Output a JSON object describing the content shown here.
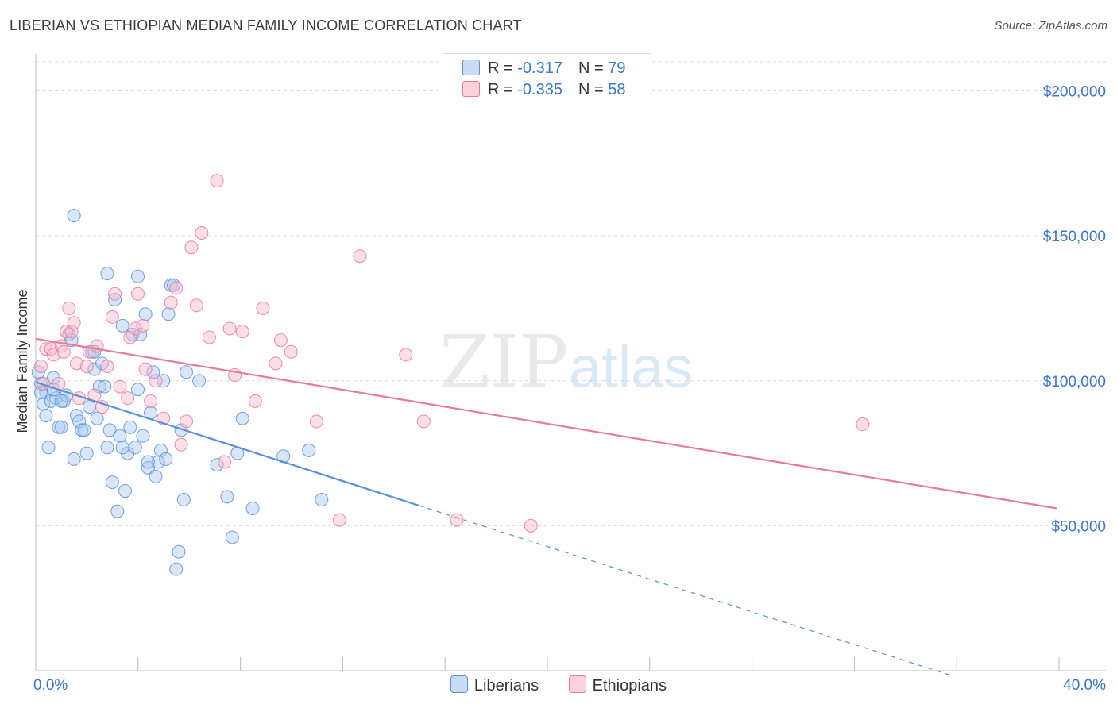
{
  "title": "LIBERIAN VS ETHIOPIAN MEDIAN FAMILY INCOME CORRELATION CHART",
  "source": "Source: ZipAtlas.com",
  "watermark": {
    "zip": "ZIP",
    "atlas": "atlas"
  },
  "legend": {
    "rows": [
      {
        "r_label": "R = ",
        "r_value": "-0.317",
        "n_label": "N = ",
        "n_value": "79",
        "color": "#a8c8f0"
      },
      {
        "r_label": "R = ",
        "r_value": "-0.335",
        "n_label": "N = ",
        "n_value": "58",
        "color": "#f7b8cb"
      }
    ]
  },
  "bottom_legend": [
    "Liberians",
    "Ethiopians"
  ],
  "chart_data": {
    "type": "scatter",
    "title": "LIBERIAN VS ETHIOPIAN MEDIAN FAMILY INCOME CORRELATION CHART",
    "xlabel": "",
    "ylabel": "Median Family Income",
    "xlim": [
      0,
      40
    ],
    "ylim": [
      0,
      210000
    ],
    "x_tick_labels": [
      "0.0%",
      "40.0%"
    ],
    "y_ticks": [
      50000,
      100000,
      150000,
      200000
    ],
    "y_tick_labels": [
      "$50,000",
      "$100,000",
      "$150,000",
      "$200,000"
    ],
    "grid": true,
    "series": [
      {
        "name": "Liberians",
        "color": "#5b8fd6",
        "fill": "#a8c8f0",
        "r": -0.317,
        "n": 79,
        "trend": {
          "x0": 0,
          "y0": 99500,
          "x1": 15,
          "y1": 57000,
          "dash_to_x": 36,
          "dash_to_y": -2000
        },
        "points": [
          [
            0.2,
            99
          ],
          [
            0.3,
            92
          ],
          [
            0.4,
            96
          ],
          [
            0.5,
            77
          ],
          [
            0.6,
            93
          ],
          [
            0.7,
            101
          ],
          [
            0.8,
            94
          ],
          [
            0.9,
            84
          ],
          [
            1.0,
            84
          ],
          [
            1.1,
            93
          ],
          [
            1.2,
            95
          ],
          [
            1.3,
            116
          ],
          [
            1.4,
            114
          ],
          [
            1.5,
            73
          ],
          [
            1.6,
            88
          ],
          [
            1.7,
            86
          ],
          [
            1.8,
            83
          ],
          [
            1.9,
            83
          ],
          [
            2.0,
            75
          ],
          [
            2.1,
            91
          ],
          [
            2.2,
            110
          ],
          [
            2.3,
            104
          ],
          [
            2.4,
            87
          ],
          [
            2.5,
            98
          ],
          [
            2.6,
            106
          ],
          [
            2.7,
            98
          ],
          [
            2.8,
            77
          ],
          [
            2.9,
            83
          ],
          [
            3.0,
            65
          ],
          [
            3.1,
            128
          ],
          [
            3.2,
            55
          ],
          [
            3.3,
            81
          ],
          [
            3.4,
            119
          ],
          [
            3.5,
            62
          ],
          [
            3.6,
            75
          ],
          [
            3.7,
            84
          ],
          [
            3.8,
            116
          ],
          [
            3.9,
            77
          ],
          [
            4.0,
            97
          ],
          [
            4.1,
            116
          ],
          [
            4.2,
            81
          ],
          [
            4.3,
            123
          ],
          [
            4.4,
            70
          ],
          [
            4.5,
            89
          ],
          [
            4.6,
            103
          ],
          [
            4.7,
            67
          ],
          [
            4.8,
            72
          ],
          [
            4.9,
            76
          ],
          [
            5.0,
            100
          ],
          [
            5.1,
            73
          ],
          [
            5.2,
            123
          ],
          [
            5.3,
            133
          ],
          [
            5.4,
            133
          ],
          [
            5.5,
            35
          ],
          [
            5.7,
            83
          ],
          [
            5.8,
            59
          ],
          [
            5.9,
            103
          ],
          [
            6.4,
            100
          ],
          [
            7.1,
            71
          ],
          [
            7.5,
            60
          ],
          [
            7.7,
            46
          ],
          [
            7.9,
            75
          ],
          [
            8.1,
            87
          ],
          [
            8.5,
            56
          ],
          [
            9.7,
            74
          ],
          [
            10.7,
            76
          ],
          [
            11.2,
            59
          ],
          [
            1.5,
            157
          ],
          [
            2.3,
            110
          ],
          [
            2.8,
            137
          ],
          [
            4.0,
            136
          ],
          [
            0.1,
            103
          ],
          [
            0.2,
            96
          ],
          [
            0.4,
            88
          ],
          [
            0.7,
            97
          ],
          [
            1.0,
            93
          ],
          [
            3.4,
            77
          ],
          [
            4.4,
            72
          ],
          [
            5.6,
            41
          ]
        ]
      },
      {
        "name": "Ethiopians",
        "color": "#e8799c",
        "fill": "#f7b8cb",
        "r": -0.335,
        "n": 58,
        "trend": {
          "x0": 0,
          "y0": 114500,
          "x1": 40,
          "y1": 56000
        },
        "points": [
          [
            0.2,
            105
          ],
          [
            0.3,
            99
          ],
          [
            0.4,
            111
          ],
          [
            0.6,
            111
          ],
          [
            0.7,
            109
          ],
          [
            0.9,
            99
          ],
          [
            1.0,
            112
          ],
          [
            1.1,
            110
          ],
          [
            1.2,
            117
          ],
          [
            1.3,
            125
          ],
          [
            1.4,
            117
          ],
          [
            1.5,
            120
          ],
          [
            1.6,
            106
          ],
          [
            1.7,
            94
          ],
          [
            2.0,
            105
          ],
          [
            2.1,
            110
          ],
          [
            2.3,
            95
          ],
          [
            2.4,
            112
          ],
          [
            2.6,
            91
          ],
          [
            2.8,
            105
          ],
          [
            3.0,
            122
          ],
          [
            3.1,
            130
          ],
          [
            3.3,
            98
          ],
          [
            3.6,
            94
          ],
          [
            3.7,
            115
          ],
          [
            3.9,
            118
          ],
          [
            4.0,
            130
          ],
          [
            4.2,
            119
          ],
          [
            4.3,
            104
          ],
          [
            4.5,
            93
          ],
          [
            4.7,
            100
          ],
          [
            5.0,
            87
          ],
          [
            5.3,
            127
          ],
          [
            5.5,
            132
          ],
          [
            5.7,
            78
          ],
          [
            5.9,
            86
          ],
          [
            6.1,
            146
          ],
          [
            6.3,
            126
          ],
          [
            6.5,
            151
          ],
          [
            6.8,
            115
          ],
          [
            7.1,
            169
          ],
          [
            7.4,
            72
          ],
          [
            7.6,
            118
          ],
          [
            7.8,
            102
          ],
          [
            8.1,
            117
          ],
          [
            8.6,
            93
          ],
          [
            8.9,
            125
          ],
          [
            9.4,
            106
          ],
          [
            9.6,
            114
          ],
          [
            10.0,
            110
          ],
          [
            11.0,
            86
          ],
          [
            11.9,
            52
          ],
          [
            12.7,
            143
          ],
          [
            14.5,
            109
          ],
          [
            15.2,
            86
          ],
          [
            16.5,
            52
          ],
          [
            19.4,
            50
          ],
          [
            32.4,
            85
          ]
        ]
      }
    ]
  }
}
